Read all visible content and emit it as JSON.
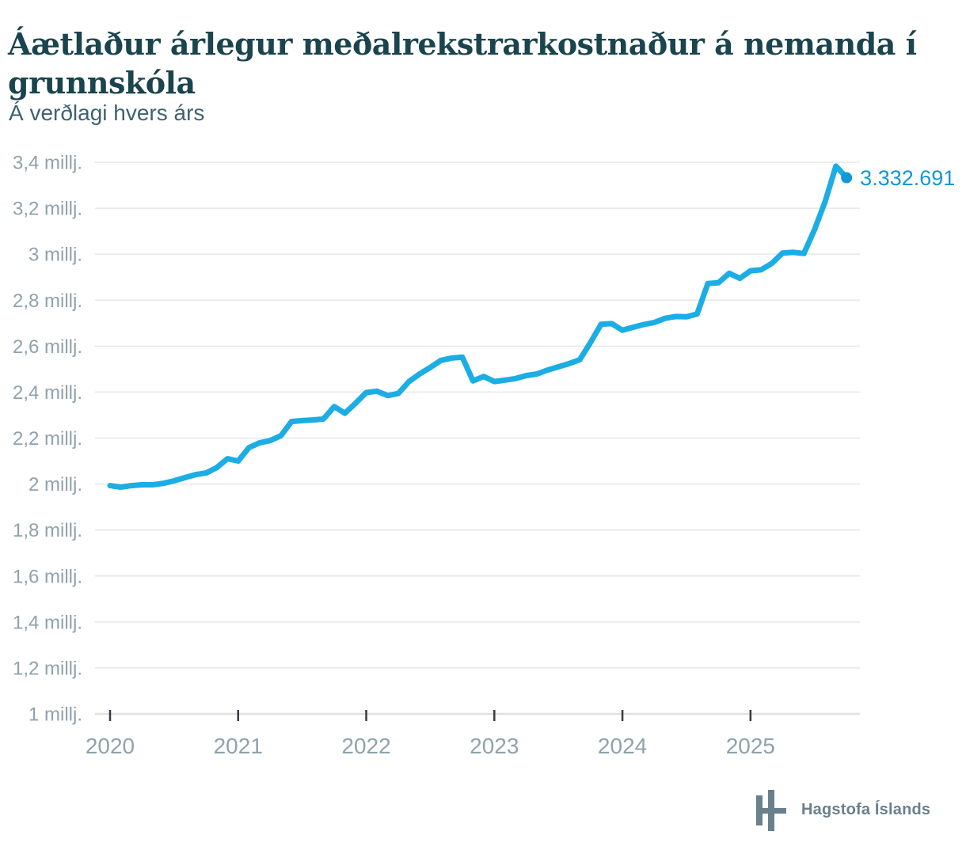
{
  "header": {
    "title": "Áætlaður árlegur meðalrekstrarkostnaður á nemanda í grunnskóla",
    "title_line1": "Áætlaður árlegur meðalrekstrarkostnaður á nemanda í",
    "title_line2": "grunnskóla",
    "subtitle": "Á verðlagi hvers árs"
  },
  "chart_data": {
    "type": "line",
    "title": "Áætlaður árlegur meðalrekstrarkostnaður á nemanda í grunnskóla",
    "subtitle": "Á verðlagi hvers árs",
    "unit": "ISK",
    "frequency": "monthly",
    "x_start": "2020-01",
    "x_end": "2025-10",
    "values": [
      1993000,
      1986000,
      1993000,
      1997000,
      1997000,
      2003000,
      2014000,
      2028000,
      2041000,
      2048000,
      2072000,
      2110000,
      2100000,
      2158000,
      2179000,
      2189000,
      2210000,
      2272000,
      2276000,
      2279000,
      2283000,
      2337000,
      2308000,
      2352000,
      2398000,
      2404000,
      2385000,
      2394000,
      2446000,
      2479000,
      2507000,
      2538000,
      2548000,
      2552000,
      2449000,
      2468000,
      2446000,
      2452000,
      2459000,
      2472000,
      2479000,
      2496000,
      2510000,
      2524000,
      2541000,
      2615000,
      2695000,
      2698000,
      2669000,
      2682000,
      2694000,
      2703000,
      2721000,
      2729000,
      2728000,
      2740000,
      2872000,
      2876000,
      2917000,
      2895000,
      2928000,
      2932000,
      2960000,
      3005000,
      3008000,
      3003000,
      3107000,
      3230000,
      3383000,
      3332691
    ],
    "end_label": "3.332.691",
    "last_value": 3332691,
    "ylim": [
      1000000,
      3400000
    ],
    "grid": true,
    "legend": "none",
    "y_ticks": [
      {
        "value": 1000000,
        "label": "1 millj."
      },
      {
        "value": 1200000,
        "label": "1,2 millj."
      },
      {
        "value": 1400000,
        "label": "1,4 millj."
      },
      {
        "value": 1600000,
        "label": "1,6 millj."
      },
      {
        "value": 1800000,
        "label": "1,8 millj."
      },
      {
        "value": 2000000,
        "label": "2 millj."
      },
      {
        "value": 2200000,
        "label": "2,2 millj."
      },
      {
        "value": 2400000,
        "label": "2,4 millj."
      },
      {
        "value": 2600000,
        "label": "2,6 millj."
      },
      {
        "value": 2800000,
        "label": "2,8 millj."
      },
      {
        "value": 3000000,
        "label": "3 millj."
      },
      {
        "value": 3200000,
        "label": "3,2 millj."
      },
      {
        "value": 3400000,
        "label": "3,4 millj."
      }
    ],
    "x_ticks": [
      {
        "value": 2020,
        "label": "2020"
      },
      {
        "value": 2021,
        "label": "2021"
      },
      {
        "value": 2022,
        "label": "2022"
      },
      {
        "value": 2023,
        "label": "2023"
      },
      {
        "value": 2024,
        "label": "2024"
      },
      {
        "value": 2025,
        "label": "2025"
      }
    ],
    "colors": {
      "line": "#1cade4",
      "accent": "#1298d5",
      "axis_label": "#8fa2ac",
      "grid": "#e7e7e7",
      "tick": "#333d44",
      "title": "#1a444e",
      "subtitle": "#3e626e"
    }
  },
  "footer": {
    "logo_text": "Hagstofa Íslands"
  }
}
